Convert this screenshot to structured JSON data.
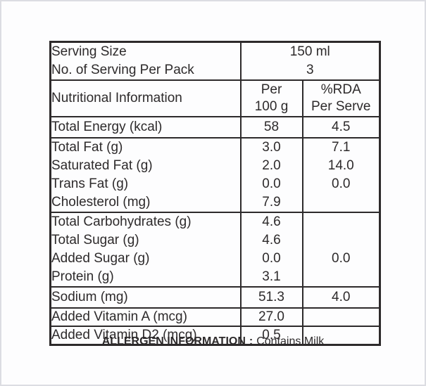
{
  "serving": {
    "size_label": "Serving Size",
    "size_value": "150 ml",
    "pack_label": "No. of Serving Per Pack",
    "pack_value": "3"
  },
  "header": {
    "info_label": "Nutritional Information",
    "per_100g": "Per\n100 g",
    "rda_per_serve": "%RDA\nPer Serve"
  },
  "rows": [
    {
      "label": "Total Energy (kcal)",
      "per100g": "58",
      "rda": "4.5"
    },
    {
      "label": "Total Fat (g)",
      "per100g": "3.0",
      "rda": "7.1"
    },
    {
      "label": "Saturated Fat (g)",
      "per100g": "2.0",
      "rda": "14.0"
    },
    {
      "label": "Trans Fat (g)",
      "per100g": "0.0",
      "rda": "0.0"
    },
    {
      "label": "Cholesterol (mg)",
      "per100g": "7.9",
      "rda": ""
    },
    {
      "label": "Total Carbohydrates (g)",
      "per100g": "4.6",
      "rda": ""
    },
    {
      "label": "Total Sugar (g)",
      "per100g": "4.6",
      "rda": ""
    },
    {
      "label": "Added Sugar (g)",
      "per100g": "0.0",
      "rda": "0.0"
    },
    {
      "label": "Protein (g)",
      "per100g": "3.1",
      "rda": ""
    },
    {
      "label": "Sodium (mg)",
      "per100g": "51.3",
      "rda": "4.0"
    },
    {
      "label": "Added Vitamin A (mcg)",
      "per100g": "27.0",
      "rda": ""
    },
    {
      "label": "Added Vitamin D2 (mcg)",
      "per100g": "0.5",
      "rda": ""
    }
  ],
  "allergen": {
    "title": "ALLERGEN INFORMATION",
    "separator": ":",
    "value": "Contains Milk"
  },
  "colors": {
    "text": "#2d2a2b",
    "table_border": "#2d2a2b",
    "frame_border": "#dcdde2",
    "background": "#ffffff"
  }
}
